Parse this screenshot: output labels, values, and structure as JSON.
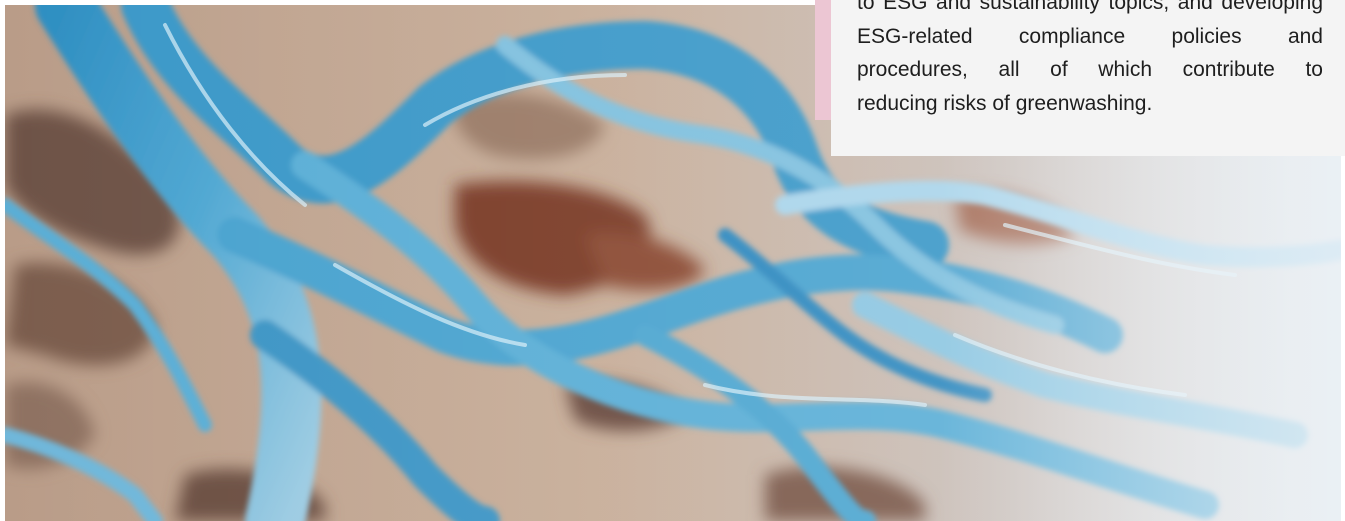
{
  "card": {
    "lines": [
      "to ESG and sustainability topics, and developing",
      "ESG-related compliance policies and",
      "procedures, all of which contribute to",
      "reducing risks of greenwashing."
    ]
  },
  "image": {
    "icon": "aerial-river-photo"
  },
  "colors": {
    "card_background": "#f4f4f4",
    "accent": "#ecc6d3",
    "text": "#1e1e1e",
    "river_blue": "#3f9bc6"
  }
}
